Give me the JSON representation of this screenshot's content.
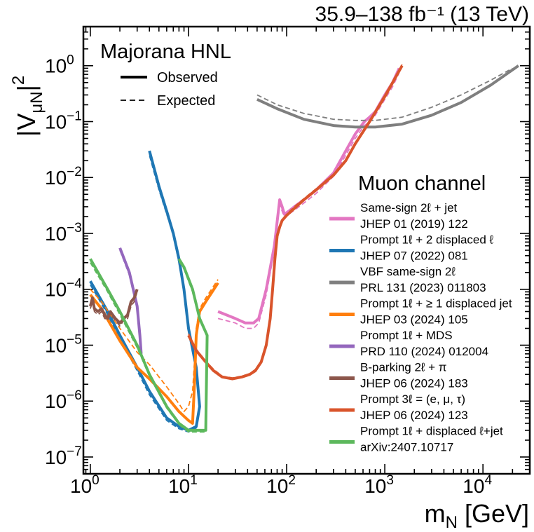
{
  "chart_data": {
    "type": "line",
    "lumi_label": "35.9–138 fb⁻¹ (13 TeV)",
    "model_label": "Majorana HNL",
    "style_legend": {
      "observed": "Observed",
      "expected": "Expected"
    },
    "legend_title": "Muon channel",
    "xlabel": {
      "main": "m",
      "sub": "N",
      "unit": " [GeV]"
    },
    "ylabel": {
      "main": "|V",
      "sub": "μN",
      "tail": "|",
      "sup": "2"
    },
    "xscale": "log",
    "yscale": "log",
    "xlim": [
      0.85,
      30000
    ],
    "ylim": [
      5e-08,
      5
    ],
    "x_ticks": [
      {
        "value": 1,
        "base": "10",
        "exp": "0"
      },
      {
        "value": 10,
        "base": "10",
        "exp": "1"
      },
      {
        "value": 100,
        "base": "10",
        "exp": "2"
      },
      {
        "value": 1000,
        "base": "10",
        "exp": "3"
      },
      {
        "value": 10000,
        "base": "10",
        "exp": "4"
      }
    ],
    "y_ticks": [
      {
        "value": 1,
        "base": "10",
        "exp": "0"
      },
      {
        "value": 0.1,
        "base": "10",
        "exp": "−1"
      },
      {
        "value": 0.01,
        "base": "10",
        "exp": "−2"
      },
      {
        "value": 0.001,
        "base": "10",
        "exp": "−3"
      },
      {
        "value": 0.0001,
        "base": "10",
        "exp": "−4"
      },
      {
        "value": 1e-05,
        "base": "10",
        "exp": "−5"
      },
      {
        "value": 1e-06,
        "base": "10",
        "exp": "−6"
      },
      {
        "value": 1e-07,
        "base": "10",
        "exp": "−7"
      }
    ],
    "series": [
      {
        "name": "Same-sign 2ℓ + jet",
        "ref": "JHEP 01 (2019) 122",
        "color": "#e377c2",
        "observed": [
          [
            20,
            4e-05
          ],
          [
            30,
            3e-05
          ],
          [
            38,
            2.5e-05
          ],
          [
            46,
            2.5e-05
          ],
          [
            52,
            3e-05
          ],
          [
            62,
            0.0001
          ],
          [
            75,
            0.0006
          ],
          [
            85,
            0.004
          ],
          [
            90,
            0.003
          ],
          [
            95,
            0.0022
          ],
          [
            105,
            0.0025
          ],
          [
            120,
            0.003
          ],
          [
            150,
            0.004
          ],
          [
            200,
            0.006
          ],
          [
            300,
            0.012
          ],
          [
            400,
            0.03
          ],
          [
            500,
            0.06
          ],
          [
            620,
            0.1
          ],
          [
            700,
            0.12
          ],
          [
            800,
            0.15
          ],
          [
            1000,
            0.3
          ],
          [
            1200,
            0.5
          ],
          [
            1400,
            0.9
          ]
        ],
        "expected": [
          [
            20,
            3e-05
          ],
          [
            30,
            2.5e-05
          ],
          [
            38,
            2e-05
          ],
          [
            46,
            2e-05
          ],
          [
            52,
            2.5e-05
          ],
          [
            62,
            8e-05
          ],
          [
            75,
            0.0005
          ],
          [
            85,
            0.0032
          ],
          [
            90,
            0.0025
          ],
          [
            95,
            0.0019
          ],
          [
            105,
            0.0022
          ],
          [
            120,
            0.0026
          ],
          [
            150,
            0.0035
          ],
          [
            200,
            0.0052
          ],
          [
            300,
            0.0105
          ],
          [
            400,
            0.025
          ],
          [
            500,
            0.05
          ],
          [
            620,
            0.085
          ],
          [
            700,
            0.1
          ],
          [
            800,
            0.13
          ],
          [
            1000,
            0.25
          ],
          [
            1200,
            0.42
          ],
          [
            1400,
            0.75
          ]
        ]
      },
      {
        "name": "Prompt 1ℓ + 2 displaced ℓ",
        "ref": "JHEP 07 (2022) 081",
        "color": "#1f77b4",
        "observed": [
          [
            1,
            0.00014
          ],
          [
            1.2,
            8e-05
          ],
          [
            1.5,
            4e-05
          ],
          [
            2,
            1.5e-05
          ],
          [
            3,
            4e-06
          ],
          [
            4,
            1.5e-06
          ],
          [
            6,
            5e-07
          ],
          [
            8,
            3.5e-07
          ],
          [
            10,
            3e-07
          ],
          [
            12,
            3.5e-07
          ],
          [
            13,
            8e-07
          ],
          [
            12,
            4e-06
          ],
          [
            10,
            2e-05
          ],
          [
            9,
            0.0001
          ],
          [
            8,
            0.00035
          ],
          [
            7,
            0.001
          ],
          [
            6,
            0.0025
          ],
          [
            5,
            0.007
          ],
          [
            4,
            0.03
          ]
        ],
        "expected": [
          [
            1,
            0.00012
          ],
          [
            1.2,
            7e-05
          ],
          [
            1.5,
            3.5e-05
          ],
          [
            2,
            1.3e-05
          ],
          [
            3,
            3.5e-06
          ],
          [
            4,
            1.3e-06
          ],
          [
            6,
            4.5e-07
          ],
          [
            8,
            3.2e-07
          ],
          [
            10,
            2.8e-07
          ],
          [
            12,
            3.3e-07
          ],
          [
            13,
            7e-07
          ],
          [
            12,
            3.5e-06
          ],
          [
            10,
            1.8e-05
          ],
          [
            9,
            9e-05
          ],
          [
            8,
            0.0003
          ],
          [
            7,
            0.0009
          ],
          [
            6,
            0.0022
          ],
          [
            5,
            0.006
          ],
          [
            4,
            0.025
          ]
        ]
      },
      {
        "name": "VBF same-sign 2ℓ",
        "ref": "PRL 131 (2023) 011803",
        "color": "#7f7f7f",
        "observed": [
          [
            50,
            0.25
          ],
          [
            80,
            0.17
          ],
          [
            150,
            0.11
          ],
          [
            300,
            0.085
          ],
          [
            500,
            0.08
          ],
          [
            800,
            0.08
          ],
          [
            1500,
            0.09
          ],
          [
            3000,
            0.13
          ],
          [
            6000,
            0.22
          ],
          [
            12000,
            0.45
          ],
          [
            23000,
            1.0
          ]
        ],
        "expected": [
          [
            50,
            0.3
          ],
          [
            80,
            0.2
          ],
          [
            150,
            0.14
          ],
          [
            300,
            0.11
          ],
          [
            500,
            0.105
          ],
          [
            800,
            0.105
          ],
          [
            1500,
            0.12
          ],
          [
            3000,
            0.18
          ],
          [
            6000,
            0.3
          ],
          [
            12000,
            0.55
          ],
          [
            20000,
            0.9
          ]
        ]
      },
      {
        "name": "Prompt 1ℓ + ≥ 1 displaced jet",
        "ref": "JHEP 03 (2024) 105",
        "color": "#ff7f0e",
        "observed": [
          [
            1,
            8e-05
          ],
          [
            1.3,
            4.5e-05
          ],
          [
            2,
            1.2e-05
          ],
          [
            3,
            4e-06
          ],
          [
            4,
            2.5e-06
          ],
          [
            6,
            1.2e-06
          ],
          [
            8,
            6.5e-07
          ],
          [
            10,
            4.5e-07
          ],
          [
            11,
            4e-07
          ],
          [
            11.5,
            2e-06
          ],
          [
            12,
            1.5e-05
          ],
          [
            13,
            4e-05
          ],
          [
            15,
            6e-05
          ],
          [
            20,
            0.00013
          ]
        ],
        "expected": [
          [
            1,
            0.0001
          ],
          [
            1.3,
            6e-05
          ],
          [
            2,
            2e-05
          ],
          [
            3,
            7.5e-06
          ],
          [
            4,
            4.5e-06
          ],
          [
            6,
            1.8e-06
          ],
          [
            8,
            9e-07
          ],
          [
            9,
            6.5e-07
          ],
          [
            10,
            8e-07
          ],
          [
            11,
            1.5e-06
          ],
          [
            11.5,
            5e-06
          ],
          [
            12,
            2e-05
          ],
          [
            13,
            4.5e-05
          ],
          [
            15,
            7e-05
          ],
          [
            20,
            0.00015
          ]
        ]
      },
      {
        "name": "Prompt 1ℓ + MDS",
        "ref": "PRD 110 (2024) 012004",
        "color": "#9467bd",
        "observed": [
          [
            2,
            0.00055
          ],
          [
            2.5,
            0.0002
          ],
          [
            3,
            5e-05
          ],
          [
            3.2,
            1.5e-05
          ],
          [
            3.3,
            7e-06
          ]
        ],
        "expected": [
          [
            2,
            0.0005
          ],
          [
            2.5,
            0.00018
          ],
          [
            3,
            4.5e-05
          ],
          [
            3.2,
            1.4e-05
          ],
          [
            3.3,
            6.5e-06
          ]
        ]
      },
      {
        "name": "B-parking 2ℓ + π",
        "ref": "JHEP 06 (2024) 183",
        "color": "#8c564b",
        "observed": [
          [
            1,
            5e-05
          ],
          [
            1.05,
            7e-05
          ],
          [
            1.1,
            4.5e-05
          ],
          [
            1.2,
            4e-05
          ],
          [
            1.3,
            4.5e-05
          ],
          [
            1.4,
            3.5e-05
          ],
          [
            1.5,
            3e-05
          ],
          [
            1.6,
            4e-05
          ],
          [
            1.8,
            3e-05
          ],
          [
            2,
            2.5e-05
          ],
          [
            2.2,
            3e-05
          ],
          [
            2.4,
            3.5e-05
          ],
          [
            2.6,
            6e-05
          ],
          [
            2.8,
            7e-05
          ],
          [
            3,
            0.0001
          ]
        ],
        "expected": [
          [
            1,
            4.5e-05
          ],
          [
            1.05,
            6e-05
          ],
          [
            1.1,
            4e-05
          ],
          [
            1.2,
            3.5e-05
          ],
          [
            1.3,
            4e-05
          ],
          [
            1.4,
            3e-05
          ],
          [
            1.5,
            2.8e-05
          ],
          [
            1.6,
            3.5e-05
          ],
          [
            1.8,
            2.8e-05
          ],
          [
            2,
            2.2e-05
          ],
          [
            2.2,
            2.8e-05
          ],
          [
            2.4,
            3e-05
          ],
          [
            2.6,
            5e-05
          ],
          [
            2.8,
            6e-05
          ],
          [
            3,
            9e-05
          ]
        ]
      },
      {
        "name": "Prompt 3ℓ = (e, μ, τ)",
        "ref": "JHEP 06 (2024) 123",
        "color": "#d9542b",
        "observed": [
          [
            10,
            1.5e-05
          ],
          [
            12,
            8e-06
          ],
          [
            15,
            5e-06
          ],
          [
            18,
            3.5e-06
          ],
          [
            22,
            2.7e-06
          ],
          [
            28,
            2.5e-06
          ],
          [
            35,
            2.7e-06
          ],
          [
            42,
            3e-06
          ],
          [
            48,
            3.5e-06
          ],
          [
            55,
            5e-06
          ],
          [
            62,
            1e-05
          ],
          [
            68,
            3e-05
          ],
          [
            72,
            0.0001
          ],
          [
            76,
            0.00035
          ],
          [
            80,
            0.0009
          ],
          [
            85,
            0.0013
          ],
          [
            90,
            0.0017
          ],
          [
            100,
            0.0021
          ],
          [
            120,
            0.0028
          ],
          [
            150,
            0.004
          ],
          [
            200,
            0.006
          ],
          [
            300,
            0.011
          ],
          [
            400,
            0.02
          ],
          [
            500,
            0.04
          ],
          [
            700,
            0.1
          ],
          [
            1000,
            0.28
          ],
          [
            1500,
            1.0
          ]
        ],
        "expected": [
          [
            10,
            1.6e-05
          ],
          [
            12,
            8.5e-06
          ],
          [
            15,
            5.2e-06
          ],
          [
            18,
            3.7e-06
          ],
          [
            22,
            2.8e-06
          ],
          [
            28,
            2.6e-06
          ],
          [
            35,
            2.8e-06
          ],
          [
            42,
            3.1e-06
          ],
          [
            48,
            3.7e-06
          ],
          [
            55,
            5.2e-06
          ],
          [
            62,
            1.05e-05
          ],
          [
            68,
            3.2e-05
          ],
          [
            72,
            0.00011
          ],
          [
            76,
            0.00037
          ],
          [
            80,
            0.00095
          ],
          [
            85,
            0.0014
          ],
          [
            90,
            0.0018
          ],
          [
            100,
            0.0022
          ],
          [
            120,
            0.003
          ],
          [
            150,
            0.0042
          ],
          [
            200,
            0.0063
          ],
          [
            300,
            0.0115
          ],
          [
            400,
            0.021
          ],
          [
            500,
            0.042
          ],
          [
            700,
            0.105
          ],
          [
            1000,
            0.3
          ],
          [
            1500,
            1.05
          ]
        ]
      },
      {
        "name": "Prompt 1ℓ + displaced ℓ+jet",
        "ref": "arXiv:2407.10717",
        "color": "#5cb85c",
        "observed": [
          [
            1,
            0.00035
          ],
          [
            1.5,
            0.0001
          ],
          [
            2,
            4e-05
          ],
          [
            3,
            1e-05
          ],
          [
            4,
            3e-06
          ],
          [
            6,
            8e-07
          ],
          [
            8,
            4e-07
          ],
          [
            10,
            3e-07
          ],
          [
            12,
            3e-07
          ],
          [
            15,
            3e-07
          ],
          [
            15.5,
            1.5e-05
          ],
          [
            13,
            3e-05
          ],
          [
            11,
            0.0001
          ],
          [
            9,
            0.00025
          ],
          [
            8,
            0.00035
          ]
        ],
        "expected": [
          [
            1,
            0.0003
          ],
          [
            1.5,
            9e-05
          ],
          [
            2,
            3.5e-05
          ],
          [
            3,
            9e-06
          ],
          [
            4,
            2.8e-06
          ],
          [
            6,
            7.5e-07
          ],
          [
            8,
            3.8e-07
          ],
          [
            10,
            2.8e-07
          ],
          [
            12,
            2.8e-07
          ],
          [
            15,
            2.8e-07
          ],
          [
            15.5,
            1.4e-05
          ],
          [
            13,
            2.8e-05
          ],
          [
            11,
            9e-05
          ],
          [
            9,
            0.00023
          ],
          [
            8,
            0.00032
          ]
        ]
      }
    ]
  }
}
